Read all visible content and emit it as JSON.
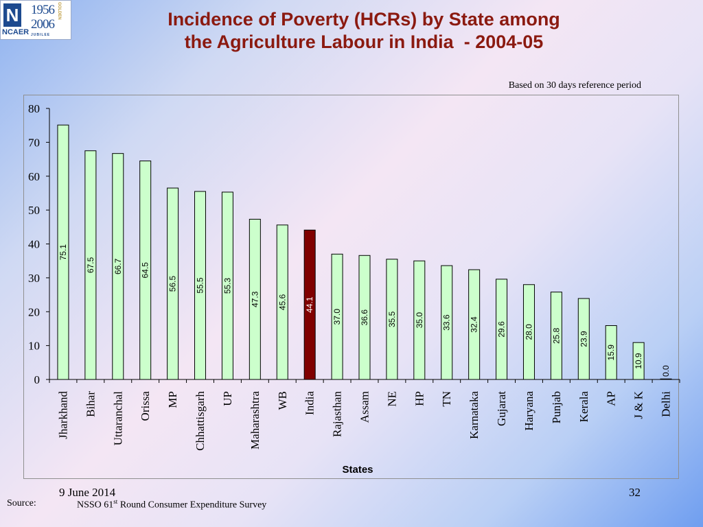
{
  "logo": {
    "mark": "N",
    "org": "NCAER",
    "years": [
      "1956",
      "2006"
    ],
    "tag": "GOLDEN",
    "foot": "JUBILEE"
  },
  "title_line1": "Incidence of Poverty (HCRs) by State among",
  "title_line2": "the Agriculture Labour in India  - 2004-05",
  "note": "Based on 30 days reference period",
  "date": "9 June 2014",
  "page_number": "32",
  "source_label": "Source:",
  "source_text_pre": "NSSO 61",
  "source_text_sup": "st",
  "source_text_post": " Round Consumer Expenditure Survey",
  "colors": {
    "bar_fill": "#ccffcc",
    "bar_stroke": "#000000",
    "highlight_fill": "#800000",
    "title": "#8b1a10"
  },
  "chart_data": {
    "type": "bar",
    "xlabel": "States",
    "ylabel": "",
    "ylim": [
      0,
      80
    ],
    "yticks": [
      0,
      10,
      20,
      30,
      40,
      50,
      60,
      70,
      80
    ],
    "grid": false,
    "categories": [
      "Jharkhand",
      "Bihar",
      "Uttaranchal",
      "Orissa",
      "MP",
      "Chhattisgarh",
      "UP",
      "Maharashtra",
      "WB",
      "India",
      "Rajasthan",
      "Assam",
      "NE",
      "HP",
      "TN",
      "Karnataka",
      "Gujarat",
      "Haryana",
      "Punjab",
      "Kerala",
      "AP",
      "J & K",
      "Delhi"
    ],
    "values": [
      75.1,
      67.5,
      66.7,
      64.5,
      56.5,
      55.5,
      55.3,
      47.3,
      45.6,
      44.1,
      37.0,
      36.6,
      35.5,
      35.0,
      33.6,
      32.4,
      29.6,
      28.0,
      25.8,
      23.9,
      15.9,
      10.9,
      0.0
    ],
    "data_labels": [
      "75.1",
      "67.5",
      "66.7",
      "64.5",
      "56.5",
      "55.5",
      "55.3",
      "47.3",
      "45.6",
      "44.1",
      "37.0",
      "36.6",
      "35.5",
      "35.0",
      "33.6",
      "32.4",
      "29.6",
      "28.0",
      "25.8",
      "23.9",
      "15.9",
      "10.9",
      "0.0"
    ],
    "highlight": "India"
  }
}
